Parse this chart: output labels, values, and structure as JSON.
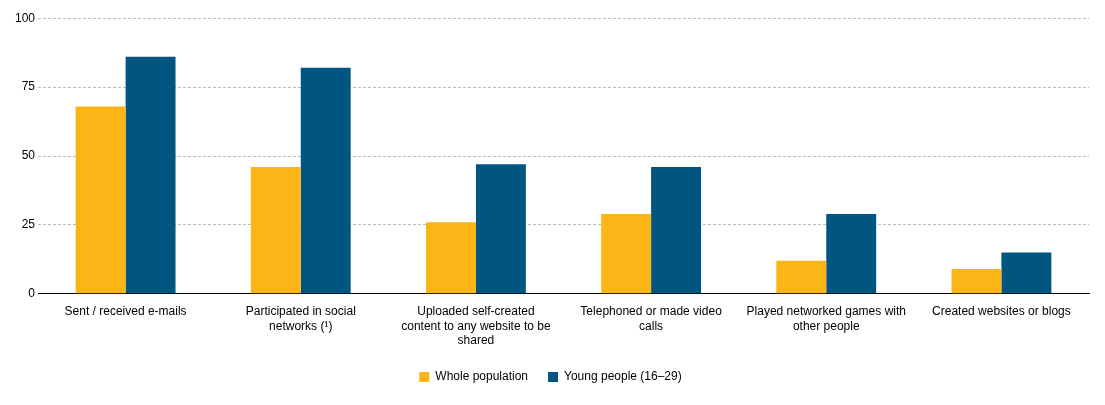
{
  "chart_data": {
    "type": "bar",
    "categories": [
      "Sent / received e-mails",
      "Participated in social networks (¹)",
      "Uploaded self-created content to any website to be shared",
      "Telephoned or made video calls",
      "Played networked games with other people",
      "Created websites or blogs"
    ],
    "series": [
      {
        "name": "Whole population",
        "color": "#fbb516",
        "values": [
          68,
          46,
          26,
          29,
          12,
          9
        ]
      },
      {
        "name": "Young people (16–29)",
        "color": "#005581",
        "values": [
          86,
          82,
          47,
          46,
          29,
          15
        ]
      }
    ],
    "ylim": [
      0,
      100
    ],
    "yticks": [
      0,
      25,
      50,
      75,
      100
    ],
    "grid": "y",
    "legend": "bottom"
  }
}
